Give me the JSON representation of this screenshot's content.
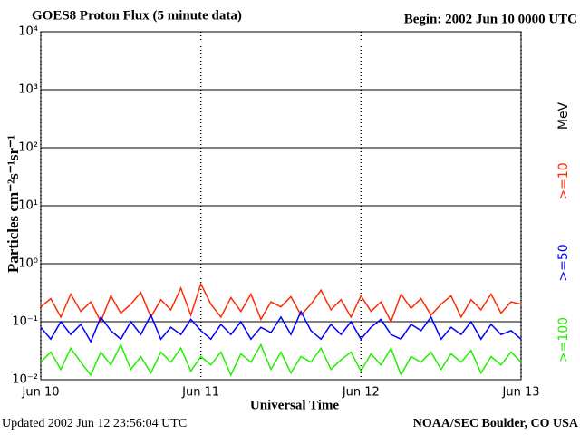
{
  "chart_data": {
    "type": "line",
    "title": "GOES8 Proton Flux (5 minute data)",
    "subtitle": "Begin: 2002 Jun 10 0000 UTC",
    "y_label": "Particles cm⁻²s⁻¹sr⁻¹",
    "x_label": "Universal Time",
    "footer_left": "Updated 2002 Jun 12 23:56:04 UTC",
    "footer_right": "NOAA/SEC Boulder, CO USA",
    "legend_unit": "MeV",
    "yscale": "log",
    "grid": true,
    "xlim": [
      0,
      72
    ],
    "xticks": [
      {
        "value": 0,
        "label": "Jun 10"
      },
      {
        "value": 24,
        "label": "Jun 11"
      },
      {
        "value": 48,
        "label": "Jun 12"
      },
      {
        "value": 72,
        "label": "Jun 13"
      }
    ],
    "ylim": [
      0.01,
      10000
    ],
    "yticks": [
      {
        "value": 0.01,
        "label": "10⁻²"
      },
      {
        "value": 0.1,
        "label": "10⁻¹"
      },
      {
        "value": 1,
        "label": "10⁰"
      },
      {
        "value": 10,
        "label": "10¹"
      },
      {
        "value": 100,
        "label": "10²"
      },
      {
        "value": 1000,
        "label": "10³"
      },
      {
        "value": 10000,
        "label": "10⁴"
      }
    ],
    "x": [
      0,
      1.5,
      3,
      4.5,
      6,
      7.5,
      9,
      10.5,
      12,
      13.5,
      15,
      16.5,
      18,
      19.5,
      21,
      22.5,
      24,
      25.5,
      27,
      28.5,
      30,
      31.5,
      33,
      34.5,
      36,
      37.5,
      39,
      40.5,
      42,
      43.5,
      45,
      46.5,
      48,
      49.5,
      51,
      52.5,
      54,
      55.5,
      57,
      58.5,
      60,
      61.5,
      63,
      64.5,
      66,
      67.5,
      69,
      70.5,
      72
    ],
    "series": [
      {
        "name": ">=10",
        "color": "#ff2a00",
        "values": [
          0.18,
          0.25,
          0.12,
          0.3,
          0.15,
          0.22,
          0.1,
          0.28,
          0.14,
          0.2,
          0.32,
          0.12,
          0.24,
          0.16,
          0.38,
          0.13,
          0.45,
          0.2,
          0.12,
          0.26,
          0.15,
          0.3,
          0.11,
          0.22,
          0.18,
          0.27,
          0.13,
          0.2,
          0.35,
          0.16,
          0.24,
          0.12,
          0.28,
          0.15,
          0.22,
          0.1,
          0.3,
          0.17,
          0.25,
          0.13,
          0.2,
          0.28,
          0.12,
          0.24,
          0.16,
          0.3,
          0.14,
          0.22,
          0.2
        ]
      },
      {
        "name": ">=50",
        "color": "#0000ff",
        "values": [
          0.08,
          0.05,
          0.1,
          0.06,
          0.09,
          0.045,
          0.12,
          0.07,
          0.05,
          0.1,
          0.06,
          0.13,
          0.05,
          0.08,
          0.06,
          0.11,
          0.07,
          0.05,
          0.09,
          0.06,
          0.1,
          0.05,
          0.08,
          0.065,
          0.12,
          0.06,
          0.15,
          0.07,
          0.05,
          0.09,
          0.06,
          0.1,
          0.05,
          0.08,
          0.11,
          0.06,
          0.05,
          0.09,
          0.07,
          0.12,
          0.05,
          0.08,
          0.06,
          0.1,
          0.05,
          0.09,
          0.06,
          0.07,
          0.05
        ]
      },
      {
        "name": ">=100",
        "color": "#22ee00",
        "values": [
          0.02,
          0.03,
          0.015,
          0.035,
          0.02,
          0.012,
          0.03,
          0.018,
          0.04,
          0.015,
          0.025,
          0.013,
          0.03,
          0.02,
          0.035,
          0.014,
          0.025,
          0.018,
          0.03,
          0.012,
          0.028,
          0.02,
          0.04,
          0.015,
          0.03,
          0.013,
          0.025,
          0.02,
          0.035,
          0.015,
          0.022,
          0.03,
          0.014,
          0.028,
          0.018,
          0.035,
          0.012,
          0.025,
          0.02,
          0.03,
          0.015,
          0.028,
          0.02,
          0.032,
          0.013,
          0.025,
          0.018,
          0.03,
          0.02
        ]
      }
    ]
  }
}
